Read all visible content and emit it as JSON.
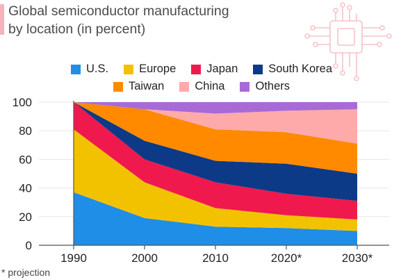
{
  "title_line1": "Global semiconductor manufacturing",
  "title_line2": "by location (in percent)",
  "footnote": "* projection",
  "icons": {
    "decoration": "circuit-chip-icon"
  },
  "colors": {
    "accent": "#f6b3bb",
    "grid": "#e6e6e6",
    "axis": "#555555"
  },
  "chart_data": {
    "type": "area",
    "stacked": true,
    "x": [
      "1990",
      "2000",
      "2010",
      "2020*",
      "2030*"
    ],
    "ylim": [
      0,
      100
    ],
    "yticks": [
      0,
      20,
      40,
      60,
      80,
      100
    ],
    "grid": true,
    "legend_placement": "top",
    "series": [
      {
        "name": "U.S.",
        "color": "#1f8ee6",
        "values": [
          37,
          19,
          13,
          12,
          10
        ]
      },
      {
        "name": "Europe",
        "color": "#f2c200",
        "values": [
          44,
          25,
          13,
          9,
          8
        ]
      },
      {
        "name": "Japan",
        "color": "#f0194d",
        "values": [
          19,
          16,
          18,
          15,
          13
        ]
      },
      {
        "name": "South Korea",
        "color": "#0c3a87",
        "values": [
          0,
          13,
          15,
          21,
          19
        ]
      },
      {
        "name": "Taiwan",
        "color": "#ff8a00",
        "values": [
          0,
          22,
          22,
          22,
          21
        ]
      },
      {
        "name": "China",
        "color": "#ffaaaa",
        "values": [
          0,
          0,
          11,
          15,
          24
        ]
      },
      {
        "name": "Others",
        "color": "#a86ad6",
        "values": [
          0,
          5,
          8,
          6,
          5
        ]
      }
    ]
  }
}
